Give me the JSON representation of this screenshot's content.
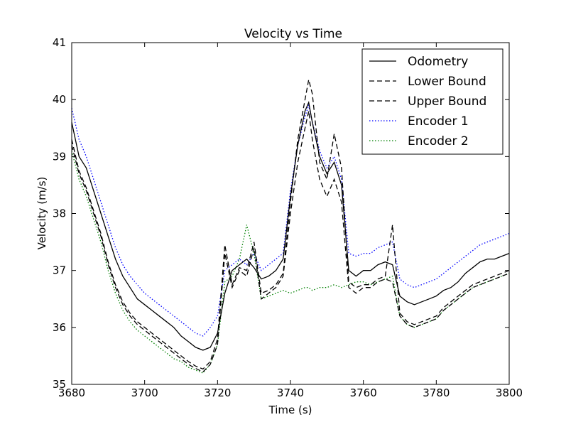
{
  "colors": {
    "odometry": "#000000",
    "bounds": "#000000",
    "encoder1": "#0000ff",
    "encoder2": "#008000",
    "background": "#ffffff"
  },
  "chart_data": {
    "type": "line",
    "title": "Velocity vs Time",
    "xlabel": "Time (s)",
    "ylabel": "Velocity (m/s)",
    "xlim": [
      3680,
      3800
    ],
    "ylim": [
      35,
      41
    ],
    "xticks": [
      3680,
      3700,
      3720,
      3740,
      3760,
      3780,
      3800
    ],
    "xtick_labels": [
      "3680",
      "3700",
      "3720",
      "3740",
      "3760",
      "3780",
      "3800"
    ],
    "yticks": [
      35,
      36,
      37,
      38,
      39,
      40,
      41
    ],
    "ytick_labels": [
      "35",
      "36",
      "37",
      "38",
      "39",
      "40",
      "41"
    ],
    "grid": false,
    "legend_position": "top-right",
    "series": [
      {
        "name": "Odometry",
        "style": "solid",
        "color": "#000000",
        "x": [
          3680,
          3682,
          3684,
          3686,
          3688,
          3690,
          3692,
          3694,
          3696,
          3698,
          3700,
          3702,
          3704,
          3706,
          3708,
          3710,
          3712,
          3714,
          3716,
          3718,
          3720,
          3722,
          3724,
          3726,
          3728,
          3730,
          3732,
          3734,
          3736,
          3738,
          3740,
          3742,
          3744,
          3745,
          3746,
          3748,
          3750,
          3752,
          3754,
          3756,
          3758,
          3760,
          3762,
          3764,
          3766,
          3768,
          3770,
          3772,
          3774,
          3776,
          3778,
          3780,
          3782,
          3784,
          3786,
          3788,
          3790,
          3792,
          3794,
          3796,
          3798,
          3800
        ],
        "y": [
          39.6,
          39.0,
          38.8,
          38.4,
          38.0,
          37.6,
          37.2,
          36.9,
          36.7,
          36.5,
          36.4,
          36.3,
          36.2,
          36.1,
          36.0,
          35.85,
          35.75,
          35.65,
          35.6,
          35.65,
          35.9,
          36.6,
          37.0,
          37.1,
          37.2,
          37.05,
          36.85,
          36.9,
          37.0,
          37.2,
          38.3,
          39.2,
          39.8,
          39.95,
          39.6,
          39.0,
          38.7,
          38.9,
          38.5,
          37.0,
          36.9,
          37.0,
          37.0,
          37.1,
          37.15,
          37.1,
          36.55,
          36.45,
          36.4,
          36.45,
          36.5,
          36.55,
          36.65,
          36.7,
          36.8,
          36.95,
          37.05,
          37.15,
          37.2,
          37.2,
          37.25,
          37.3
        ]
      },
      {
        "name": "Lower Bound",
        "style": "dashed",
        "color": "#000000",
        "x": [
          3680,
          3682,
          3684,
          3686,
          3688,
          3690,
          3692,
          3694,
          3696,
          3698,
          3700,
          3702,
          3704,
          3706,
          3708,
          3710,
          3712,
          3714,
          3716,
          3718,
          3720,
          3722,
          3724,
          3726,
          3728,
          3730,
          3732,
          3734,
          3736,
          3738,
          3740,
          3742,
          3744,
          3745,
          3746,
          3748,
          3750,
          3752,
          3754,
          3756,
          3758,
          3760,
          3762,
          3764,
          3766,
          3768,
          3770,
          3772,
          3774,
          3776,
          3778,
          3780,
          3782,
          3784,
          3786,
          3788,
          3790,
          3792,
          3794,
          3796,
          3798,
          3800
        ],
        "y": [
          39.2,
          38.7,
          38.4,
          38.0,
          37.6,
          37.1,
          36.7,
          36.4,
          36.2,
          36.05,
          35.95,
          35.85,
          35.75,
          35.65,
          35.55,
          35.45,
          35.35,
          35.28,
          35.22,
          35.35,
          35.7,
          37.3,
          36.7,
          37.0,
          36.9,
          37.4,
          36.5,
          36.6,
          36.7,
          36.9,
          38.0,
          38.9,
          39.5,
          39.8,
          39.3,
          38.6,
          38.3,
          38.6,
          38.2,
          36.7,
          36.6,
          36.7,
          36.7,
          36.8,
          36.85,
          36.8,
          36.2,
          36.05,
          36.0,
          36.05,
          36.1,
          36.15,
          36.3,
          36.4,
          36.5,
          36.6,
          36.7,
          36.75,
          36.8,
          36.85,
          36.9,
          36.95
        ]
      },
      {
        "name": "Upper Bound",
        "style": "dashed",
        "color": "#000000",
        "x": [
          3680,
          3682,
          3684,
          3686,
          3688,
          3690,
          3692,
          3694,
          3696,
          3698,
          3700,
          3702,
          3704,
          3706,
          3708,
          3710,
          3712,
          3714,
          3716,
          3718,
          3720,
          3722,
          3724,
          3726,
          3728,
          3730,
          3732,
          3734,
          3736,
          3738,
          3740,
          3742,
          3744,
          3745,
          3746,
          3748,
          3750,
          3752,
          3754,
          3756,
          3758,
          3760,
          3762,
          3764,
          3766,
          3768,
          3770,
          3772,
          3774,
          3776,
          3778,
          3780,
          3782,
          3784,
          3786,
          3788,
          3790,
          3792,
          3794,
          3796,
          3798,
          3800
        ],
        "y": [
          39.3,
          38.75,
          38.45,
          38.05,
          37.65,
          37.15,
          36.75,
          36.45,
          36.25,
          36.1,
          36.0,
          35.9,
          35.8,
          35.7,
          35.6,
          35.5,
          35.4,
          35.32,
          35.27,
          35.4,
          35.8,
          37.45,
          36.75,
          37.05,
          37.0,
          37.5,
          36.6,
          36.65,
          36.75,
          36.95,
          38.2,
          39.3,
          40.0,
          40.35,
          40.1,
          38.9,
          38.6,
          39.4,
          38.8,
          36.8,
          36.7,
          36.75,
          36.75,
          36.85,
          36.9,
          37.8,
          36.25,
          36.1,
          36.05,
          36.1,
          36.15,
          36.2,
          36.35,
          36.45,
          36.55,
          36.65,
          36.75,
          36.8,
          36.85,
          36.9,
          36.95,
          37.0
        ]
      },
      {
        "name": "Encoder 1",
        "style": "dotted",
        "color": "#0000ff",
        "x": [
          3680,
          3682,
          3684,
          3686,
          3688,
          3690,
          3692,
          3694,
          3696,
          3698,
          3700,
          3702,
          3704,
          3706,
          3708,
          3710,
          3712,
          3714,
          3716,
          3718,
          3720,
          3722,
          3724,
          3726,
          3728,
          3730,
          3732,
          3734,
          3736,
          3738,
          3740,
          3742,
          3744,
          3745,
          3746,
          3748,
          3750,
          3752,
          3754,
          3756,
          3758,
          3760,
          3762,
          3764,
          3766,
          3768,
          3770,
          3772,
          3774,
          3776,
          3778,
          3780,
          3782,
          3784,
          3786,
          3788,
          3790,
          3792,
          3794,
          3796,
          3798,
          3800
        ],
        "y": [
          39.85,
          39.3,
          39.0,
          38.6,
          38.2,
          37.8,
          37.4,
          37.1,
          36.9,
          36.75,
          36.6,
          36.5,
          36.4,
          36.3,
          36.2,
          36.1,
          36.0,
          35.9,
          35.85,
          36.0,
          36.2,
          37.0,
          37.1,
          37.2,
          37.1,
          37.3,
          37.0,
          37.1,
          37.2,
          37.3,
          38.4,
          39.2,
          39.7,
          39.9,
          39.6,
          39.1,
          38.8,
          39.0,
          38.6,
          37.3,
          37.25,
          37.3,
          37.3,
          37.4,
          37.45,
          37.5,
          36.85,
          36.75,
          36.7,
          36.75,
          36.8,
          36.85,
          36.95,
          37.05,
          37.15,
          37.25,
          37.35,
          37.45,
          37.5,
          37.55,
          37.6,
          37.65
        ]
      },
      {
        "name": "Encoder 2",
        "style": "dotted",
        "color": "#008000",
        "x": [
          3680,
          3682,
          3684,
          3686,
          3688,
          3690,
          3692,
          3694,
          3696,
          3698,
          3700,
          3702,
          3704,
          3706,
          3708,
          3710,
          3712,
          3714,
          3716,
          3718,
          3720,
          3722,
          3724,
          3726,
          3728,
          3730,
          3732,
          3734,
          3736,
          3738,
          3740,
          3742,
          3744,
          3745,
          3746,
          3748,
          3750,
          3752,
          3754,
          3756,
          3758,
          3760,
          3762,
          3764,
          3766,
          3768,
          3770,
          3772,
          3774,
          3776,
          3778,
          3780,
          3782,
          3784,
          3786,
          3788,
          3790,
          3792,
          3794,
          3796,
          3798,
          3800
        ],
        "y": [
          39.1,
          38.6,
          38.3,
          37.9,
          37.5,
          37.0,
          36.6,
          36.3,
          36.1,
          35.95,
          35.85,
          35.75,
          35.65,
          35.55,
          35.45,
          35.4,
          35.3,
          35.25,
          35.2,
          35.35,
          35.7,
          36.8,
          36.9,
          37.2,
          37.8,
          37.3,
          36.5,
          36.55,
          36.6,
          36.65,
          36.6,
          36.65,
          36.7,
          36.7,
          36.65,
          36.7,
          36.7,
          36.75,
          36.7,
          36.75,
          36.8,
          36.8,
          36.75,
          36.8,
          36.85,
          36.9,
          36.2,
          36.05,
          36.0,
          36.05,
          36.1,
          36.15,
          36.3,
          36.4,
          36.5,
          36.6,
          36.7,
          36.75,
          36.8,
          36.85,
          36.9,
          36.95
        ]
      }
    ]
  }
}
